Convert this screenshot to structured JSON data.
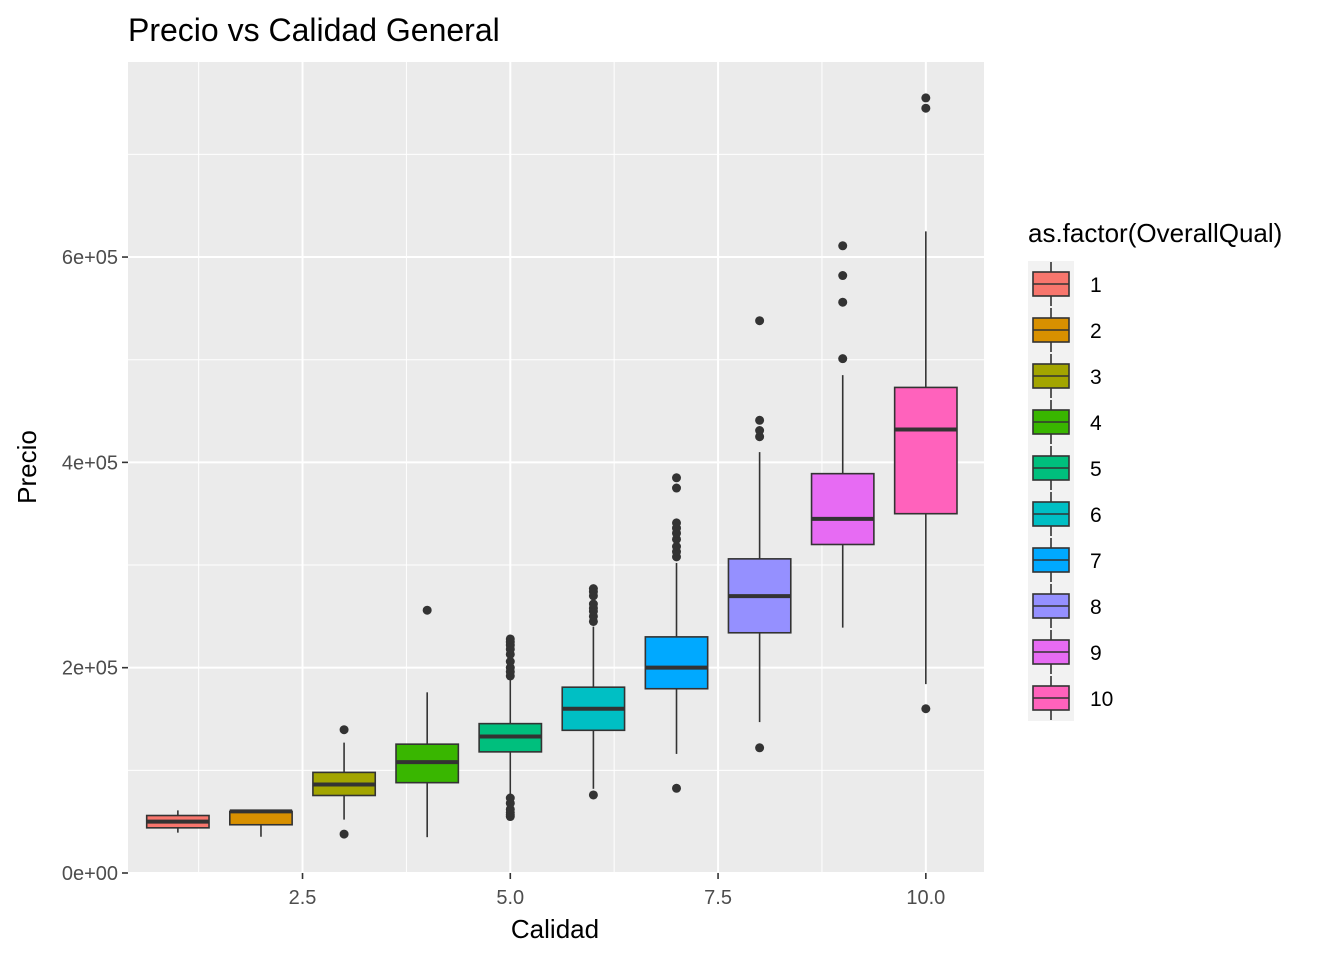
{
  "chart_data": {
    "type": "boxplot",
    "title": "Precio vs Calidad General",
    "xlabel": "Calidad",
    "ylabel": "Precio",
    "xlim": [
      0.4,
      10.7
    ],
    "ylim": [
      0,
      790000
    ],
    "x_ticks": [
      2.5,
      5.0,
      7.5,
      10.0
    ],
    "x_tick_labels": [
      "2.5",
      "5.0",
      "7.5",
      "10.0"
    ],
    "y_ticks": [
      0,
      200000,
      400000,
      600000
    ],
    "y_tick_labels": [
      "0e+00",
      "2e+05",
      "4e+05",
      "6e+05"
    ],
    "grid": true,
    "legend": {
      "title": "as.factor(OverallQual)",
      "position": "right"
    },
    "series": [
      {
        "name": "1",
        "x": 1,
        "color": "#F8766D",
        "lower_whisker": 39300,
        "q1": 44000,
        "median": 50000,
        "q3": 56000,
        "upper_whisker": 61000,
        "outliers": []
      },
      {
        "name": "2",
        "x": 2,
        "color": "#D89000",
        "lower_whisker": 35300,
        "q1": 47000,
        "median": 60000,
        "q3": 60000,
        "upper_whisker": 60000,
        "outliers": []
      },
      {
        "name": "3",
        "x": 3,
        "color": "#A3A500",
        "lower_whisker": 52000,
        "q1": 75500,
        "median": 86250,
        "q3": 98000,
        "upper_whisker": 127000,
        "outliers": [
          37900,
          139600
        ]
      },
      {
        "name": "4",
        "x": 4,
        "color": "#39B600",
        "lower_whisker": 34900,
        "q1": 88000,
        "median": 108000,
        "q3": 125500,
        "upper_whisker": 176000,
        "outliers": [
          256000
        ]
      },
      {
        "name": "5",
        "x": 5,
        "color": "#00BF7D",
        "lower_whisker": 76000,
        "q1": 118000,
        "median": 133000,
        "q3": 145500,
        "upper_whisker": 188000,
        "outliers": [
          55000,
          57000,
          59000,
          62000,
          68000,
          73000,
          192000,
          196000,
          200000,
          206000,
          213000,
          218000,
          222000,
          225000,
          228000
        ]
      },
      {
        "name": "6",
        "x": 6,
        "color": "#00BFC4",
        "lower_whisker": 82000,
        "q1": 139000,
        "median": 160000,
        "q3": 181000,
        "upper_whisker": 240000,
        "outliers": [
          76000,
          245000,
          250000,
          255000,
          258000,
          262000,
          270000,
          274000,
          277000
        ]
      },
      {
        "name": "7",
        "x": 7,
        "color": "#00A9FF",
        "lower_whisker": 116000,
        "q1": 179500,
        "median": 200000,
        "q3": 230000,
        "upper_whisker": 302000,
        "outliers": [
          82500,
          308000,
          313000,
          318000,
          325000,
          331000,
          336000,
          341000,
          375000,
          385000
        ]
      },
      {
        "name": "8",
        "x": 8,
        "color": "#9590FF",
        "lower_whisker": 147000,
        "q1": 234000,
        "median": 269750,
        "q3": 306000,
        "upper_whisker": 410000,
        "outliers": [
          122000,
          425000,
          431000,
          441000,
          538000
        ]
      },
      {
        "name": "9",
        "x": 9,
        "color": "#E76BF3",
        "lower_whisker": 239000,
        "q1": 320000,
        "median": 345000,
        "q3": 389000,
        "upper_whisker": 485000,
        "outliers": [
          501000,
          556000,
          582000,
          611000
        ]
      },
      {
        "name": "10",
        "x": 10,
        "color": "#FF62BC",
        "lower_whisker": 184000,
        "q1": 350000,
        "median": 432000,
        "q3": 473000,
        "upper_whisker": 625000,
        "outliers": [
          160000,
          745000,
          755000
        ]
      }
    ]
  }
}
